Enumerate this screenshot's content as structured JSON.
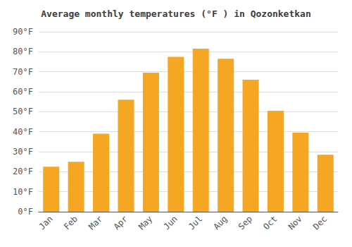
{
  "chart_data": {
    "type": "bar",
    "title": "Average monthly temperatures (°F ) in Qozonketkan",
    "categories": [
      "Jan",
      "Feb",
      "Mar",
      "Apr",
      "May",
      "Jun",
      "Jul",
      "Aug",
      "Sep",
      "Oct",
      "Nov",
      "Dec"
    ],
    "values": [
      22.5,
      25,
      39,
      56,
      69.5,
      77.5,
      81.5,
      76.5,
      66,
      50.5,
      39.5,
      28.5
    ],
    "color": "#F5A623",
    "ylim": [
      0,
      90
    ],
    "yticks": [
      {
        "value": 0,
        "label": "0°F"
      },
      {
        "value": 10,
        "label": "10°F"
      },
      {
        "value": 20,
        "label": "20°F"
      },
      {
        "value": 30,
        "label": "30°F"
      },
      {
        "value": 40,
        "label": "40°F"
      },
      {
        "value": 50,
        "label": "50°F"
      },
      {
        "value": 60,
        "label": "60°F"
      },
      {
        "value": 70,
        "label": "70°F"
      },
      {
        "value": 80,
        "label": "80°F"
      },
      {
        "value": 90,
        "label": "90°F"
      }
    ],
    "grid": true
  }
}
